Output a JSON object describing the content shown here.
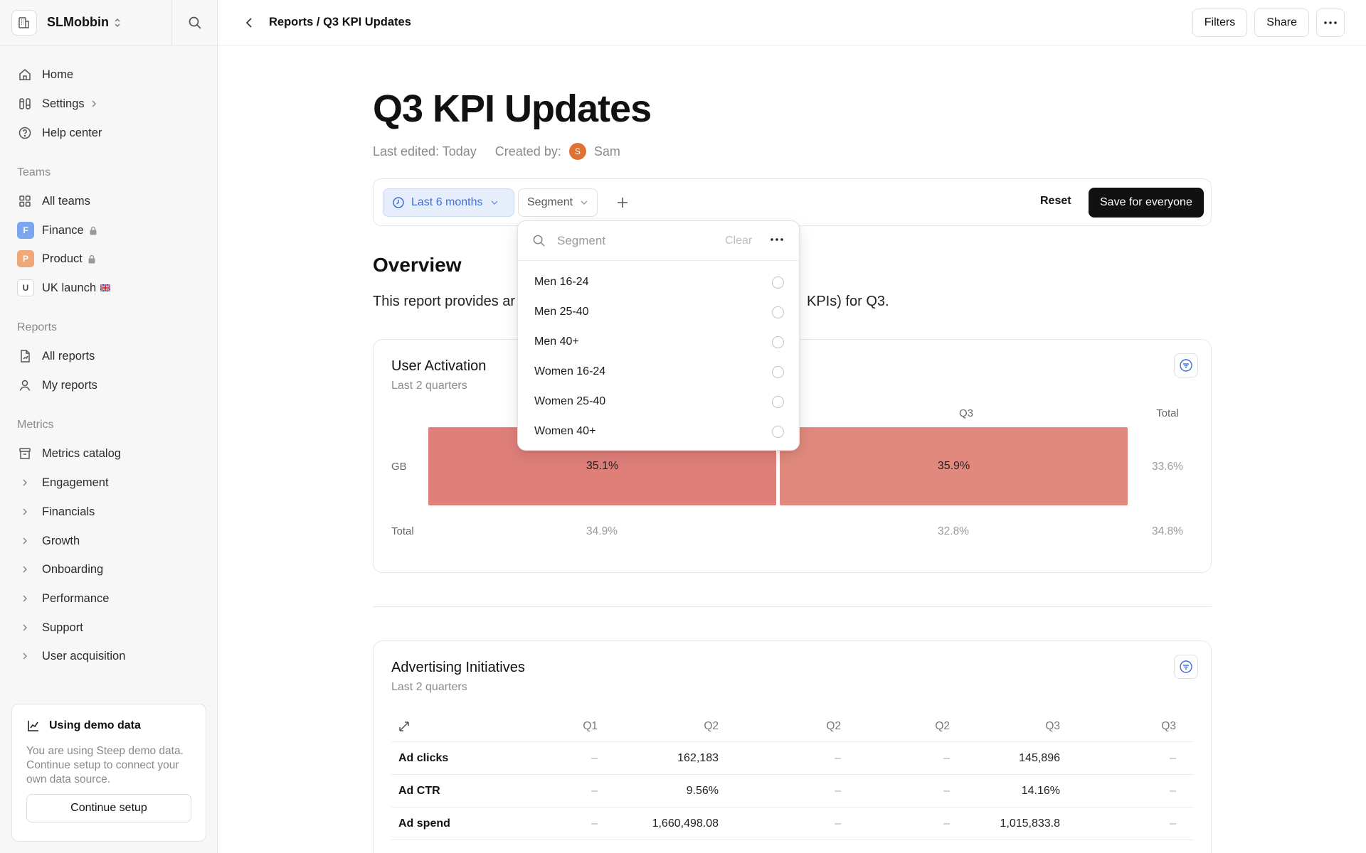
{
  "workspace": {
    "name": "SLMobbin"
  },
  "sidebar": {
    "top_items": [
      {
        "label": "Home"
      },
      {
        "label": "Settings"
      },
      {
        "label": "Help center"
      }
    ],
    "teams_label": "Teams",
    "teams": [
      {
        "label": "All teams"
      },
      {
        "label": "Finance",
        "badge": "F",
        "color": "#7aa7f0"
      },
      {
        "label": "Product",
        "badge": "P",
        "color": "#f0a77a"
      },
      {
        "label": "UK launch",
        "badge": "U",
        "flag": "🇬🇧"
      }
    ],
    "reports_label": "Reports",
    "reports": [
      {
        "label": "All reports"
      },
      {
        "label": "My reports"
      }
    ],
    "metrics_label": "Metrics",
    "metrics": [
      {
        "label": "Metrics catalog"
      },
      {
        "label": "Engagement"
      },
      {
        "label": "Financials"
      },
      {
        "label": "Growth"
      },
      {
        "label": "Onboarding"
      },
      {
        "label": "Performance"
      },
      {
        "label": "Support"
      },
      {
        "label": "User acquisition"
      }
    ],
    "demo": {
      "title": "Using demo data",
      "description": "You are using Steep demo data. Continue setup to connect your own data source.",
      "button": "Continue setup"
    }
  },
  "topbar": {
    "breadcrumb": "Reports / Q3 KPI Updates",
    "filters_label": "Filters",
    "share_label": "Share"
  },
  "page": {
    "title": "Q3 KPI Updates",
    "last_edited": "Last edited: Today",
    "created_by_label": "Created by:",
    "author_initial": "S",
    "author_name": "Sam"
  },
  "filter_bar": {
    "period": "Last 6 months",
    "segment": "Segment",
    "reset": "Reset",
    "save": "Save for everyone"
  },
  "overview": {
    "heading": "Overview",
    "text_left": "This report provides ar",
    "text_right": "KPIs) for Q3."
  },
  "segment_dropdown": {
    "placeholder": "Segment",
    "clear": "Clear",
    "options": [
      "Men 16-24",
      "Men 25-40",
      "Men 40+",
      "Women 16-24",
      "Women 25-40",
      "Women 40+"
    ]
  },
  "user_activation": {
    "title": "User Activation",
    "subtitle": "Last 2 quarters",
    "columns": [
      "Q3",
      "Total"
    ],
    "rows": [
      {
        "label": "GB",
        "cells": [
          "35.1%",
          "35.9%"
        ],
        "total": "33.6%"
      }
    ],
    "total_row": {
      "label": "Total",
      "cells": [
        "34.9%",
        "32.8%"
      ],
      "total": "34.8%"
    },
    "colors": {
      "cell_1": "#df7f7a",
      "cell_2": "#e1897e"
    }
  },
  "advertising": {
    "title": "Advertising Initiatives",
    "subtitle": "Last 2 quarters",
    "columns": [
      "Q1",
      "Q2",
      "Q2",
      "Q2",
      "Q3",
      "Q3"
    ],
    "rows": [
      {
        "name": "Ad clicks",
        "values": [
          "–",
          "162,183",
          "–",
          "–",
          "145,896",
          "–"
        ]
      },
      {
        "name": "Ad CTR",
        "values": [
          "–",
          "9.56%",
          "–",
          "–",
          "14.16%",
          "–"
        ]
      },
      {
        "name": "Ad spend",
        "values": [
          "–",
          "1,660,498.08",
          "–",
          "–",
          "1,015,833.8",
          "–"
        ]
      }
    ]
  }
}
